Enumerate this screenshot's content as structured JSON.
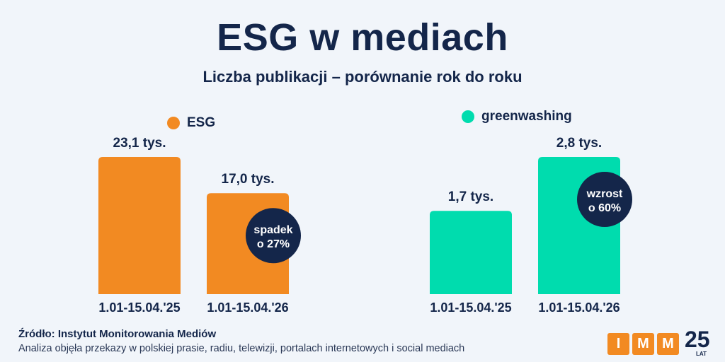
{
  "title": "ESG w mediach",
  "subtitle": "Liczba publikacji – porównanie rok do roku",
  "chart_data": [
    {
      "type": "bar",
      "categories": [
        "1.01-15.04.'25",
        "1.01-15.04.'26"
      ],
      "series": [
        {
          "name": "ESG",
          "values": [
            23.1,
            17.0
          ],
          "labels": [
            "23,1 tys.",
            "17,0 tys."
          ],
          "color": "#f28a22"
        }
      ],
      "annotation": {
        "bar_index": 1,
        "line1": "spadek",
        "line2": "o 27%",
        "color": "#14264a"
      },
      "ylim": [
        0,
        23.1
      ]
    },
    {
      "type": "bar",
      "categories": [
        "1.01-15.04.'25",
        "1.01-15.04.'26"
      ],
      "series": [
        {
          "name": "greenwashing",
          "values": [
            1.7,
            2.8
          ],
          "labels": [
            "1,7 tys.",
            "2,8 tys."
          ],
          "color": "#00dcae"
        }
      ],
      "annotation": {
        "bar_index": 1,
        "line1": "wzrost",
        "line2": "o 60%",
        "color": "#14264a"
      },
      "ylim": [
        0,
        2.8
      ]
    }
  ],
  "footer": {
    "source": "Źródło: Instytut Monitorowania Mediów",
    "note": "Analiza objęła przekazy w polskiej prasie, radiu, telewizji, portalach internetowych i social mediach"
  },
  "logo": {
    "letters": [
      "I",
      "M",
      "M"
    ],
    "number": "25",
    "suffix": "LAT",
    "color": "#f28a22"
  }
}
